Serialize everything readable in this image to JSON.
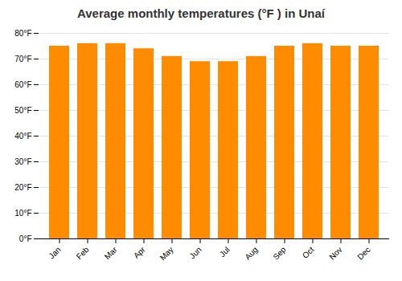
{
  "chart_data": {
    "type": "bar",
    "title": "Average monthly temperatures (°F ) in Unaí",
    "categories": [
      "Jan",
      "Feb",
      "Mar",
      "Apr",
      "May",
      "Jun",
      "Jul",
      "Aug",
      "Sep",
      "Oct",
      "Nov",
      "Dec"
    ],
    "values": [
      75,
      76,
      76,
      74,
      71,
      69,
      69,
      71,
      75,
      76,
      75,
      75
    ],
    "color": "#ff8c00",
    "ylim": [
      0,
      80
    ],
    "yticks": [
      {
        "value": 0,
        "label": "0°F"
      },
      {
        "value": 10,
        "label": "10°F"
      },
      {
        "value": 20,
        "label": "20°F"
      },
      {
        "value": 30,
        "label": "30°F"
      },
      {
        "value": 40,
        "label": "40°F"
      },
      {
        "value": 50,
        "label": "50°F"
      },
      {
        "value": 60,
        "label": "60°F"
      },
      {
        "value": 70,
        "label": "70°F"
      },
      {
        "value": 80,
        "label": "80°F"
      }
    ],
    "grid": true
  }
}
